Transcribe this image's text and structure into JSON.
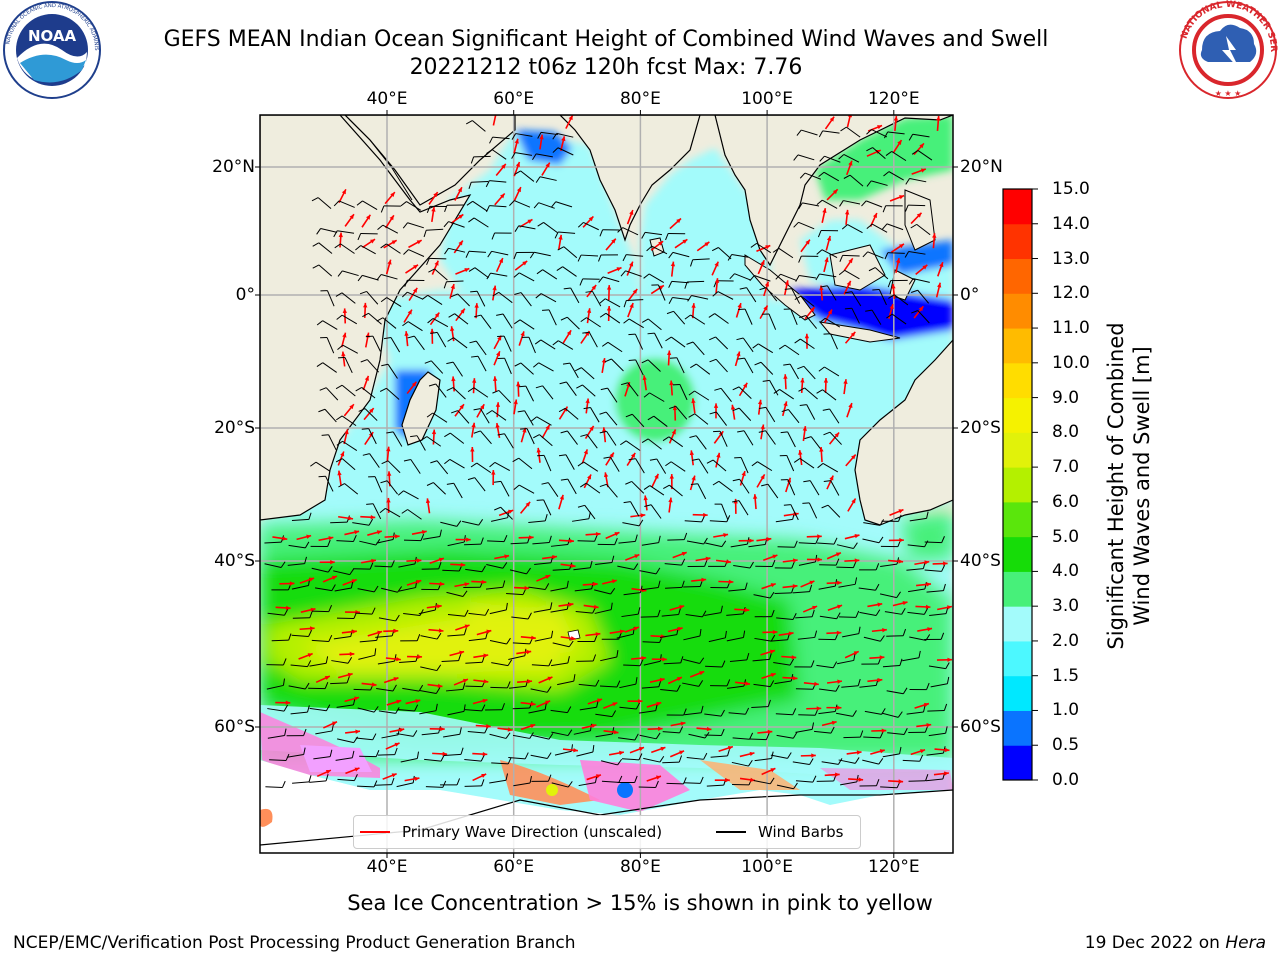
{
  "title": {
    "line1": "GEFS MEAN Indian Ocean Significant Height of Combined Wind Waves and Swell",
    "line2": "20221212 t06z 120h fcst   Max: 7.76"
  },
  "logos": {
    "left": {
      "name": "NOAA",
      "text": "NOAA",
      "ring_text": "NATIONAL OCEANIC AND ATMOSPHERIC ADMINISTRATION · U.S. DEPARTMENT OF COMMERCE"
    },
    "right": {
      "name": "National Weather Service",
      "ring_text": "NATIONAL WEATHER SERVICE"
    }
  },
  "map": {
    "longitude_ticks": [
      "40°E",
      "60°E",
      "80°E",
      "100°E",
      "120°E"
    ],
    "longitude_values": [
      40,
      60,
      80,
      100,
      120
    ],
    "latitude_ticks": [
      "20°N",
      "0°",
      "20°S",
      "40°S",
      "60°S"
    ],
    "latitude_values": [
      20,
      0,
      -20,
      -40,
      -60
    ],
    "colors": {
      "land": "#efedde",
      "coast": "#000000",
      "grid": "#b0b0b0",
      "wave_direction": "#ff0000",
      "wind_barbs": "#000000",
      "sea_ice": "#ff7fdc"
    }
  },
  "legend": {
    "items": [
      {
        "label": "Primary Wave Direction (unscaled)",
        "color": "#ff0000"
      },
      {
        "label": "Wind Barbs",
        "color": "#000000"
      }
    ]
  },
  "colorbar": {
    "label_line1": "Significant Height of Combined",
    "label_line2": "Wind Waves and Swell [m]",
    "ticks": [
      "0.0",
      "0.5",
      "1.0",
      "1.5",
      "2.0",
      "3.0",
      "4.0",
      "5.0",
      "6.0",
      "7.0",
      "8.0",
      "9.0",
      "10.0",
      "11.0",
      "12.0",
      "13.0",
      "14.0",
      "15.0"
    ],
    "colors": [
      "#0000ff",
      "#0a74ff",
      "#00e8ff",
      "#4cf8ff",
      "#a3fbfb",
      "#47f07a",
      "#16dc08",
      "#5ae60c",
      "#b4f000",
      "#e1f20a",
      "#f5f200",
      "#ffdd00",
      "#ffbb00",
      "#ff8c00",
      "#ff6600",
      "#ff3300",
      "#ff0000"
    ]
  },
  "footer": {
    "sea_ice_note": "Sea Ice Concentration > 15% is shown in pink to yellow",
    "credit": "NCEP/EMC/Verification Post Processing Product Generation Branch",
    "date": "19 Dec 2022 on ",
    "host": "Hera"
  }
}
